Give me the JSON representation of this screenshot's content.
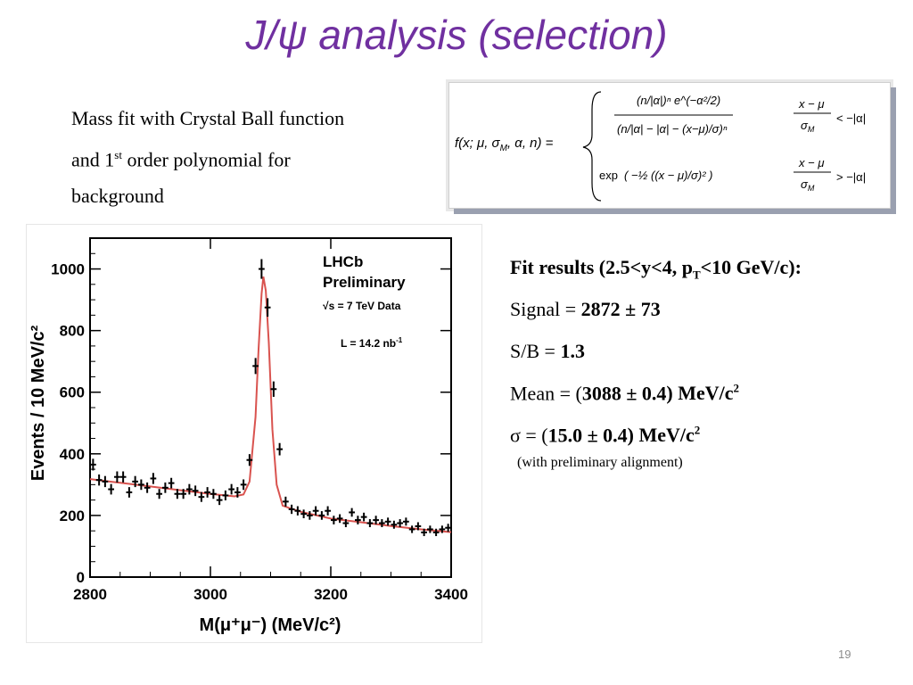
{
  "slide": {
    "title": "J/ψ analysis (selection)",
    "description_line1": "Mass fit with Crystal Ball function",
    "description_line2_pre": "and 1",
    "description_line2_sup": "st",
    "description_line2_post": " order polynomial for",
    "description_line3": "background",
    "page_number": "19"
  },
  "formula": {
    "lhs": "f(x; μ, σ",
    "lhs_sub": "M",
    "lhs_end": ", α, n) =",
    "case1_condition": "< −|α|",
    "case2_condition": "> −|α|",
    "exp_label": "exp"
  },
  "results": {
    "header_pre": "Fit results (2.5<y<4, p",
    "header_sub": "T",
    "header_post": "<10 GeV/c):",
    "signal_label": "Signal = ",
    "signal_value": "2872 ± 73",
    "sb_label": "S/B = ",
    "sb_value": "1.3",
    "mean_label": "Mean = (",
    "mean_value": "3088 ± 0.4",
    "mean_unit": ") MeV/c",
    "mean_unit_sup": "2",
    "sigma_label": "σ = (",
    "sigma_value": "15.0 ± 0.4",
    "sigma_unit": ") MeV/c",
    "sigma_unit_sup": "2",
    "note": "(with preliminary alignment)"
  },
  "chart_data": {
    "type": "scatter",
    "title": "",
    "experiment_label": "LHCb",
    "status_label": "Preliminary",
    "energy_label": "√s = 7 TeV Data",
    "lumi_label": "L = 14.2 nb",
    "lumi_sup": "-1",
    "xlabel": "M(μ⁺μ⁻) (MeV/c²)",
    "ylabel": "Events / 10 MeV/c²",
    "xlim": [
      2800,
      3400
    ],
    "ylim": [
      0,
      1100
    ],
    "xticks": [
      2800,
      3000,
      3200,
      3400
    ],
    "yticks": [
      0,
      200,
      400,
      600,
      800,
      1000
    ],
    "series": [
      {
        "kind": "data",
        "color": "#000000",
        "x": [
          2805,
          2815,
          2825,
          2835,
          2845,
          2855,
          2865,
          2875,
          2885,
          2895,
          2905,
          2915,
          2925,
          2935,
          2945,
          2955,
          2965,
          2975,
          2985,
          2995,
          3005,
          3015,
          3025,
          3035,
          3045,
          3055,
          3065,
          3075,
          3085,
          3095,
          3105,
          3115,
          3125,
          3135,
          3145,
          3155,
          3165,
          3175,
          3185,
          3195,
          3205,
          3215,
          3225,
          3235,
          3245,
          3255,
          3265,
          3275,
          3285,
          3295,
          3305,
          3315,
          3325,
          3335,
          3345,
          3355,
          3365,
          3375,
          3385,
          3395
        ],
        "y": [
          365,
          315,
          310,
          285,
          325,
          325,
          275,
          310,
          300,
          290,
          320,
          270,
          290,
          305,
          270,
          270,
          285,
          280,
          260,
          275,
          270,
          250,
          265,
          285,
          275,
          300,
          380,
          685,
          1000,
          875,
          610,
          415,
          245,
          220,
          215,
          205,
          200,
          215,
          200,
          215,
          185,
          190,
          175,
          210,
          185,
          195,
          175,
          185,
          175,
          180,
          170,
          175,
          180,
          155,
          165,
          145,
          155,
          145,
          155,
          160
        ],
        "yerr": [
          19,
          18,
          18,
          17,
          18,
          18,
          17,
          18,
          17,
          17,
          18,
          16,
          17,
          17,
          16,
          16,
          17,
          17,
          16,
          17,
          16,
          16,
          16,
          17,
          17,
          17,
          19,
          26,
          32,
          30,
          25,
          20,
          16,
          15,
          15,
          14,
          14,
          15,
          14,
          15,
          14,
          14,
          13,
          14,
          14,
          14,
          13,
          14,
          13,
          13,
          13,
          13,
          13,
          12,
          13,
          12,
          12,
          12,
          12,
          13
        ]
      },
      {
        "kind": "fit",
        "name": "",
        "color": "#d9534f",
        "x": [
          2800,
          2850,
          2900,
          2950,
          3000,
          3040,
          3055,
          3065,
          3075,
          3080,
          3085,
          3088,
          3092,
          3097,
          3103,
          3110,
          3120,
          3130,
          3150,
          3200,
          3250,
          3300,
          3350,
          3400
        ],
        "y": [
          318,
          306,
          294,
          282,
          270,
          262,
          268,
          310,
          520,
          740,
          920,
          975,
          930,
          760,
          480,
          300,
          232,
          225,
          212,
          190,
          178,
          166,
          155,
          146
        ]
      }
    ]
  }
}
